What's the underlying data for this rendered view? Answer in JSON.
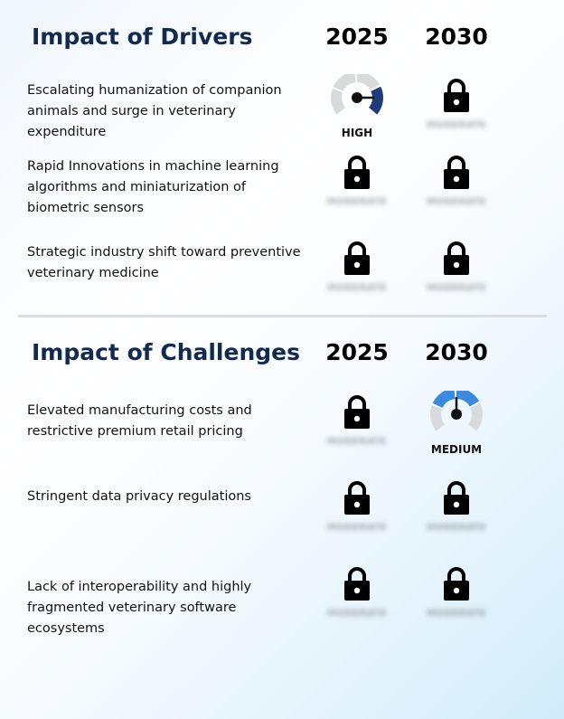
{
  "drivers": {
    "title": "Impact of Drivers",
    "year_1": "2025",
    "year_2": "2030",
    "rows": [
      {
        "text": "Escalating humanization of companion animals and surge in veterinary expenditure",
        "y2025": {
          "kind": "gauge",
          "label": "HIGH",
          "level": "high",
          "color": "#1f3c7a"
        },
        "y2030": {
          "kind": "locked",
          "hidden_label": "MODERATE"
        }
      },
      {
        "text": "Rapid Innovations in machine learning algorithms and miniaturization of biometric sensors",
        "y2025": {
          "kind": "locked",
          "hidden_label": "MODERATE"
        },
        "y2030": {
          "kind": "locked",
          "hidden_label": "MODERATE"
        }
      },
      {
        "text": "Strategic industry shift toward preventive veterinary medicine",
        "y2025": {
          "kind": "locked",
          "hidden_label": "MODERATE"
        },
        "y2030": {
          "kind": "locked",
          "hidden_label": "MODERATE"
        }
      }
    ]
  },
  "challenges": {
    "title": "Impact of Challenges",
    "year_1": "2025",
    "year_2": "2030",
    "rows": [
      {
        "text": "Elevated manufacturing costs and restrictive premium retail pricing",
        "y2025": {
          "kind": "locked",
          "hidden_label": "MODERATE"
        },
        "y2030": {
          "kind": "gauge",
          "label": "MEDIUM",
          "level": "medium",
          "color": "#3a8be0"
        }
      },
      {
        "text": "Stringent data privacy regulations",
        "y2025": {
          "kind": "locked",
          "hidden_label": "MODERATE"
        },
        "y2030": {
          "kind": "locked",
          "hidden_label": "MODERATE"
        }
      },
      {
        "text": "Lack of interoperability and highly fragmented veterinary software ecosystems",
        "y2025": {
          "kind": "locked",
          "hidden_label": "MODERATE"
        },
        "y2030": {
          "kind": "locked",
          "hidden_label": "MODERATE"
        }
      }
    ]
  },
  "icons": {
    "lock": "lock-icon",
    "gauge": "gauge-icon"
  },
  "colors": {
    "title": "#132a50",
    "gauge_track": "#d9dadc",
    "needle": "#111111"
  }
}
